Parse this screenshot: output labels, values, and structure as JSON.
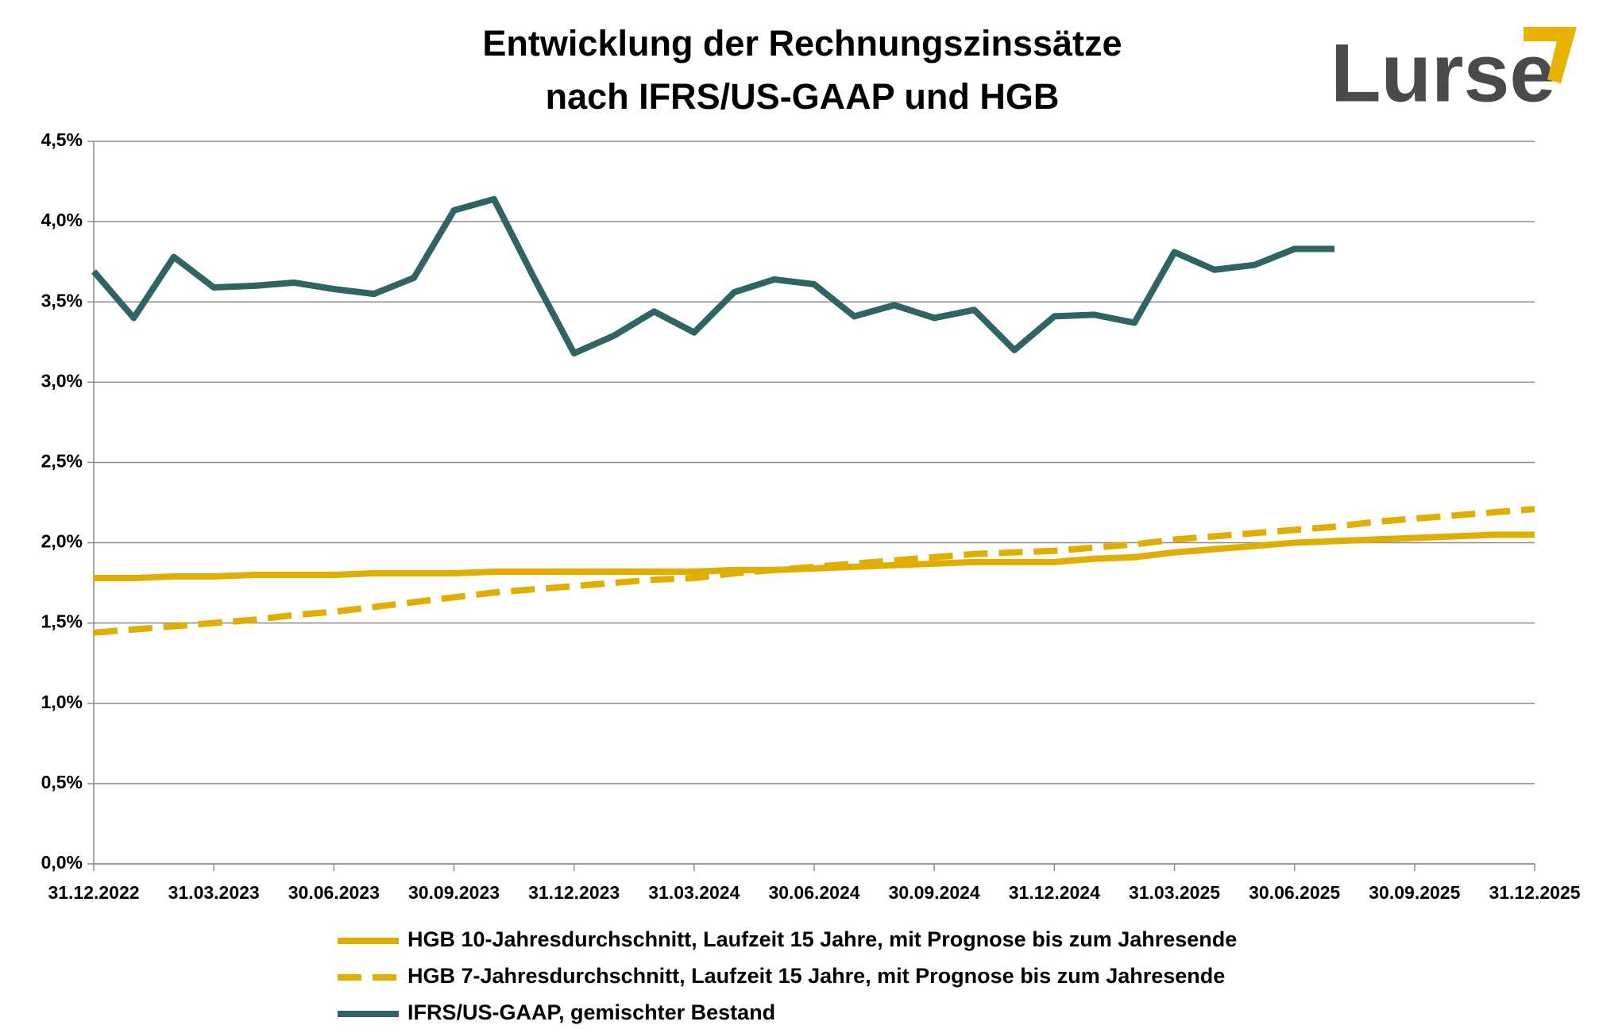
{
  "logo": "Lurse",
  "chart_data": {
    "type": "line",
    "title": [
      "Entwicklung der Rechnungszinssätze",
      "nach IFRS/US-GAAP und HGB"
    ],
    "categories": [
      "31.12.2022",
      null,
      null,
      "31.03.2023",
      null,
      null,
      "30.06.2023",
      null,
      null,
      "30.09.2023",
      null,
      null,
      "31.12.2023",
      null,
      null,
      "31.03.2024",
      null,
      null,
      "30.06.2024",
      null,
      null,
      "30.09.2024",
      null,
      null,
      "31.12.2024",
      null,
      null,
      "31.03.2025",
      null,
      null,
      "30.06.2025",
      null,
      null,
      "30.09.2025",
      null,
      null,
      "31.12.2025"
    ],
    "series": [
      {
        "name": "HGB 10-Jahresdurchschnitt, Laufzeit 15 Jahre, mit Prognose bis zum Jahresende",
        "color": "#e0ae00",
        "line_style": "solid",
        "values": [
          1.78,
          1.78,
          1.79,
          1.79,
          1.8,
          1.8,
          1.8,
          1.81,
          1.81,
          1.81,
          1.82,
          1.82,
          1.82,
          1.82,
          1.82,
          1.82,
          1.83,
          1.83,
          1.84,
          1.85,
          1.86,
          1.87,
          1.88,
          1.88,
          1.88,
          1.9,
          1.91,
          1.94,
          1.96,
          1.98,
          2.0,
          2.01,
          2.02,
          2.03,
          2.04,
          2.05,
          2.05
        ]
      },
      {
        "name": "HGB 7-Jahresdurchschnitt, Laufzeit 15 Jahre, mit Prognose bis zum Jahresende",
        "color": "#e0ae00",
        "line_style": "dashed",
        "values": [
          1.44,
          1.46,
          1.48,
          1.5,
          1.52,
          1.55,
          1.57,
          1.6,
          1.63,
          1.66,
          1.69,
          1.71,
          1.73,
          1.75,
          1.77,
          1.78,
          1.81,
          1.83,
          1.85,
          1.87,
          1.89,
          1.91,
          1.93,
          1.94,
          1.95,
          1.97,
          1.99,
          2.02,
          2.04,
          2.06,
          2.08,
          2.1,
          2.13,
          2.15,
          2.17,
          2.19,
          2.21
        ]
      },
      {
        "name": "IFRS/US-GAAP, gemischter Bestand",
        "color": "#2f6464",
        "line_style": "solid",
        "values": [
          3.69,
          3.4,
          3.78,
          3.59,
          3.6,
          3.62,
          3.58,
          3.55,
          3.65,
          4.07,
          4.14,
          3.65,
          3.18,
          3.29,
          3.44,
          3.31,
          3.56,
          3.64,
          3.61,
          3.41,
          3.48,
          3.4,
          3.45,
          3.2,
          3.41,
          3.42,
          3.37,
          3.81,
          3.7,
          3.73,
          3.83,
          3.83,
          null,
          null,
          null,
          null,
          null
        ]
      }
    ],
    "ylim": [
      0,
      4.5
    ],
    "yticks": [
      {
        "value": 0,
        "label": "0,0%"
      },
      {
        "value": 0.5,
        "label": "0,5%"
      },
      {
        "value": 1,
        "label": "1,0%"
      },
      {
        "value": 1.5,
        "label": "1,5%"
      },
      {
        "value": 2,
        "label": "2,0%"
      },
      {
        "value": 2.5,
        "label": "2,5%"
      },
      {
        "value": 3,
        "label": "3,0%"
      },
      {
        "value": 3.5,
        "label": "3,5%"
      },
      {
        "value": 4,
        "label": "4,0%"
      },
      {
        "value": 4.5,
        "label": "4,5%"
      }
    ],
    "grid": true,
    "legend": "bottom"
  }
}
